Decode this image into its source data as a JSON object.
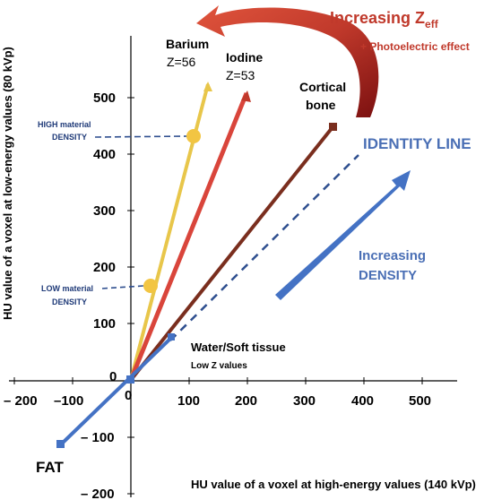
{
  "axes": {
    "x_label": "HU value of a voxel at high-energy values (140 kVp)",
    "y_label": "HU value of a voxel at low-energy values (80 kVp)",
    "x_ticks": [
      "– 200",
      "–100",
      "0",
      "100",
      "200",
      "300",
      "400",
      "500"
    ],
    "y_ticks": [
      "500",
      "400",
      "300",
      "200",
      "100",
      "0",
      "– 100",
      "– 200"
    ]
  },
  "labels": {
    "barium_name": "Barium",
    "barium_z": "Z=56",
    "iodine_name": "Iodine",
    "iodine_z": "Z=53",
    "cortical_line1": "Cortical",
    "cortical_line2": "bone",
    "identity_line": "IDENTITY LINE",
    "increasing_density_1": "Increasing",
    "increasing_density_2": "DENSITY",
    "water_1": "Water/Soft tissue",
    "water_2": "Low Z values",
    "fat": "FAT",
    "high_density_1": "HIGH material",
    "high_density_2": "DENSITY",
    "low_density_1": "LOW material",
    "low_density_2": "DENSITY",
    "zeff_main": "Increasing Z",
    "zeff_sub": "eff",
    "photoelectric": "+ Photoelectric effect"
  },
  "colors": {
    "barium": "#e8c64a",
    "iodine": "#d9453b",
    "cortical": "#7a2e1e",
    "identity": "#4472c4",
    "zeff_arrow": "#c0392b",
    "dashed_annot": "#2f4f8f"
  }
}
